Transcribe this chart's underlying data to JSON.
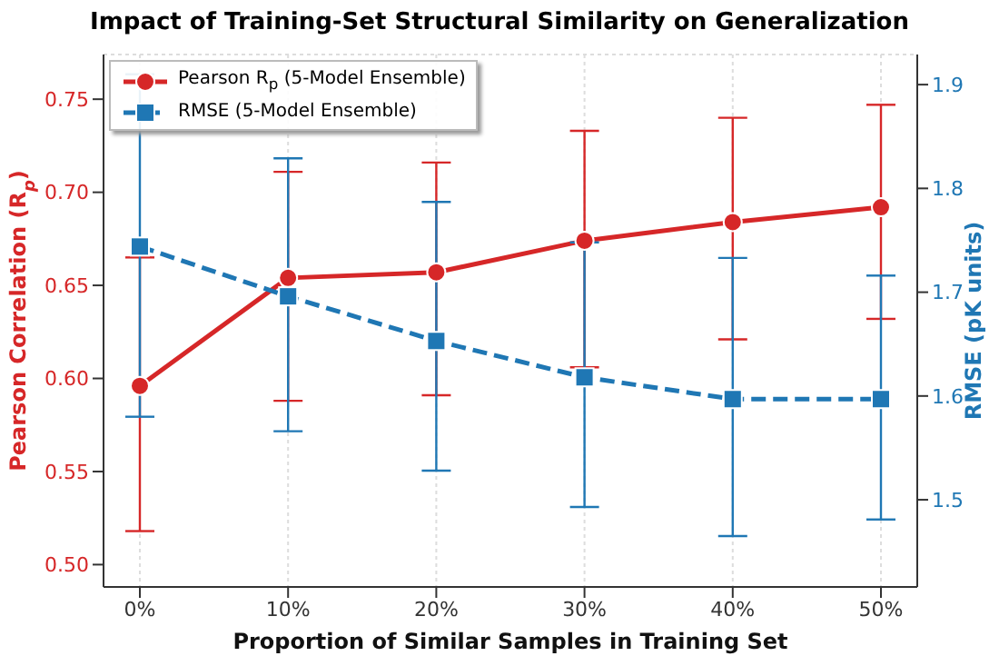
{
  "chart_data": {
    "type": "line",
    "title": "Impact of Training-Set Structural Similarity on Generalization",
    "xlabel": "Proportion of Similar Samples in Training Set",
    "ylabel": "Pearson Correlation (R$_{p}$)",
    "y2label": "RMSE (pK units)",
    "categories": [
      "0%",
      "10%",
      "20%",
      "30%",
      "40%",
      "50%"
    ],
    "series": [
      {
        "name": "Pearson R$_{p}$ (5-Model Ensemble)",
        "color": "#d62728",
        "marker": "circle",
        "line_style": "solid",
        "values": [
          0.596,
          0.654,
          0.657,
          0.674,
          0.684,
          0.692
        ],
        "errors": [
          [
            0.518,
            0.665
          ],
          [
            0.588,
            0.711
          ],
          [
            0.591,
            0.716
          ],
          [
            0.606,
            0.733
          ],
          [
            0.621,
            0.74
          ],
          [
            0.632,
            0.747
          ]
        ]
      },
      {
        "name": "RMSE (5-Model Ensemble)",
        "color": "#1f77b4",
        "marker": "square",
        "line_style": "dashed",
        "axis": "y2",
        "values": [
          1.744,
          1.696,
          1.653,
          1.618,
          1.597,
          1.597
        ],
        "errors": [
          [
            1.58,
            1.91
          ],
          [
            1.566,
            1.829
          ],
          [
            1.528,
            1.787
          ],
          [
            1.493,
            1.748
          ],
          [
            1.465,
            1.733
          ],
          [
            1.481,
            1.716
          ]
        ]
      }
    ],
    "ylim": [
      0.488,
      0.774
    ],
    "yticks": [
      {
        "value": 0.5,
        "label": "0.50"
      },
      0.55,
      {
        "value": 0.6,
        "label": "0.60"
      },
      0.65,
      {
        "value": 0.7,
        "label": "0.70"
      },
      0.75
    ],
    "y2lim": [
      1.416,
      1.929
    ],
    "y2ticks": [
      1.5,
      1.6,
      1.7,
      1.8,
      1.9
    ],
    "grid": true,
    "legend": "top left"
  }
}
